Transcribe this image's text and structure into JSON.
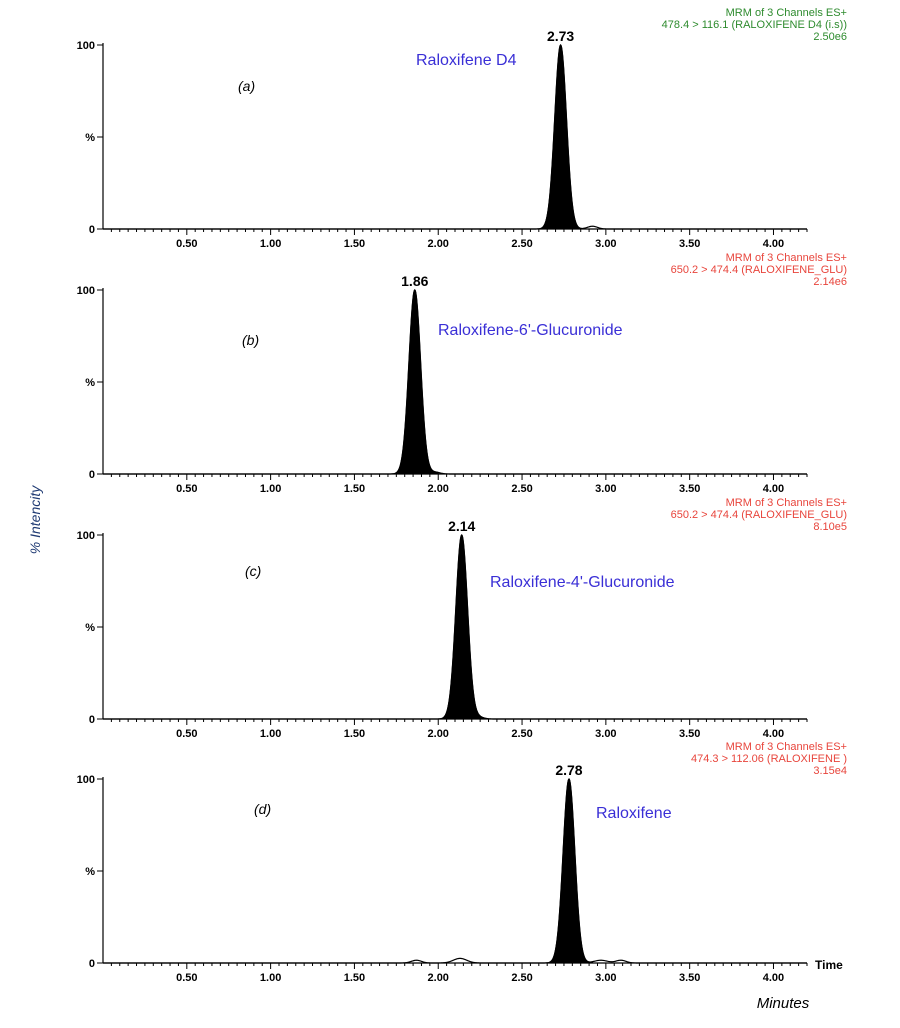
{
  "figure": {
    "y_axis_label": "% Intencity",
    "x_axis_label": "Minutes",
    "time_axis_word": "Time",
    "colors": {
      "trace": "#000000",
      "compound_label": "#3a2fd6",
      "channel_green": "#2e8b2e",
      "channel_red": "#e8453c",
      "ylabel": "#1f3a73"
    }
  },
  "chart_data": [
    {
      "type": "line",
      "panel_label": "(a)",
      "compound": "Raloxifene D4",
      "peak_label": "2.73",
      "channel_info": [
        "MRM of 3 Channels ES+",
        "478.4 > 116.1 (RALOXIFENE D4 (i.s))",
        "2.50e6"
      ],
      "channel_color": "green",
      "xlim": [
        0.0,
        4.2
      ],
      "ylim": [
        0,
        100
      ],
      "x_ticks": [
        "0.50",
        "1.00",
        "1.50",
        "2.00",
        "2.50",
        "3.00",
        "3.50",
        "4.00"
      ],
      "y_ticks": [
        "0",
        "%",
        "100"
      ],
      "peaks": [
        {
          "rt": 2.73,
          "height": 100,
          "width": 0.035,
          "filled": true
        },
        {
          "rt": 2.92,
          "height": 1.5,
          "width": 0.03,
          "filled": false
        }
      ]
    },
    {
      "type": "line",
      "panel_label": "(b)",
      "compound": "Raloxifene-6'-Glucuronide",
      "peak_label": "1.86",
      "channel_info": [
        "MRM of 3 Channels ES+",
        "650.2 > 474.4 (RALOXIFENE_GLU)",
        "2.14e6"
      ],
      "channel_color": "red",
      "xlim": [
        0.0,
        4.2
      ],
      "ylim": [
        0,
        100
      ],
      "x_ticks": [
        "0.50",
        "1.00",
        "1.50",
        "2.00",
        "2.50",
        "3.00",
        "3.50",
        "4.00"
      ],
      "y_ticks": [
        "0",
        "%",
        "100"
      ],
      "peaks": [
        {
          "rt": 1.86,
          "height": 100,
          "width": 0.035,
          "filled": true
        },
        {
          "rt": 1.98,
          "height": 1.0,
          "width": 0.03,
          "filled": false
        }
      ]
    },
    {
      "type": "line",
      "panel_label": "(c)",
      "compound": "Raloxifene-4'-Glucuronide",
      "peak_label": "2.14",
      "channel_info": [
        "MRM of 3 Channels ES+",
        "650.2 > 474.4 (RALOXIFENE_GLU)",
        "8.10e5"
      ],
      "channel_color": "red",
      "xlim": [
        0.0,
        4.2
      ],
      "ylim": [
        0,
        100
      ],
      "x_ticks": [
        "0.50",
        "1.00",
        "1.50",
        "2.00",
        "2.50",
        "3.00",
        "3.50",
        "4.00"
      ],
      "y_ticks": [
        "0",
        "%",
        "100"
      ],
      "peaks": [
        {
          "rt": 2.14,
          "height": 100,
          "width": 0.035,
          "filled": true
        },
        {
          "rt": 2.24,
          "height": 1.0,
          "width": 0.03,
          "filled": false
        }
      ]
    },
    {
      "type": "line",
      "panel_label": "(d)",
      "compound": "Raloxifene",
      "peak_label": "2.78",
      "channel_info": [
        "MRM of 3 Channels ES+",
        "474.3 > 112.06 (RALOXIFENE )",
        "3.15e4"
      ],
      "channel_color": "red",
      "xlim": [
        0.0,
        4.2
      ],
      "ylim": [
        0,
        100
      ],
      "x_ticks": [
        "0.50",
        "1.00",
        "1.50",
        "2.00",
        "2.50",
        "3.00",
        "3.50",
        "4.00"
      ],
      "y_ticks": [
        "0",
        "%",
        "100"
      ],
      "peaks": [
        {
          "rt": 2.78,
          "height": 100,
          "width": 0.035,
          "filled": true
        },
        {
          "rt": 1.87,
          "height": 1.5,
          "width": 0.03,
          "filled": false
        },
        {
          "rt": 2.13,
          "height": 2.5,
          "width": 0.04,
          "filled": false
        },
        {
          "rt": 2.97,
          "height": 1.5,
          "width": 0.04,
          "filled": false
        },
        {
          "rt": 3.09,
          "height": 1.5,
          "width": 0.03,
          "filled": false
        }
      ]
    }
  ]
}
